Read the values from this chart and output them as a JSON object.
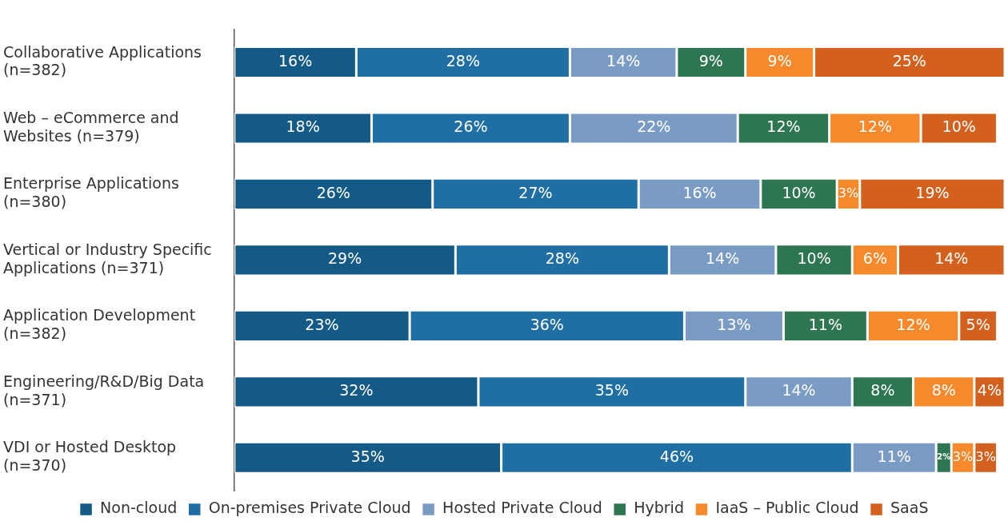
{
  "chart_data": {
    "type": "bar",
    "orientation": "horizontal",
    "stacked": true,
    "grid": false,
    "legend": "bottom",
    "tick_labels": "y",
    "categories": [
      "Collaborative Applications\n(n=382)",
      "Web – eCommerce and\nWebsites (n=379)",
      "Enterprise Applications\n(n=380)",
      "Vertical or Industry Specific\nApplications (n=371)",
      "Application Development\n(n=382)",
      "Engineering/R&D/Big Data\n(n=371)",
      "VDI or Hosted Desktop\n(n=370)"
    ],
    "series": [
      {
        "name": "Non-cloud",
        "color": "#135a87",
        "values": [
          16,
          18,
          26,
          29,
          23,
          32,
          35
        ],
        "value_labels": [
          "16%",
          "18%",
          "26%",
          "29%",
          "23%",
          "32%",
          "35%"
        ]
      },
      {
        "name": "On-premises Private Cloud",
        "color": "#1f6fa5",
        "values": [
          28,
          26,
          27,
          28,
          36,
          35,
          46
        ],
        "value_labels": [
          "28%",
          "26%",
          "27%",
          "28%",
          "36%",
          "35%",
          "46%"
        ]
      },
      {
        "name": "Hosted Private Cloud",
        "color": "#7a9cc4",
        "values": [
          14,
          22,
          16,
          14,
          13,
          14,
          11
        ],
        "value_labels": [
          "14%",
          "22%",
          "16%",
          "14%",
          "13%",
          "14%",
          "11%"
        ]
      },
      {
        "name": "Hybrid",
        "color": "#2e7652",
        "values": [
          9,
          12,
          10,
          10,
          11,
          8,
          2
        ],
        "value_labels": [
          "9%",
          "12%",
          "10%",
          "10%",
          "11%",
          "8%",
          "2%"
        ]
      },
      {
        "name": "IaaS – Public Cloud",
        "color": "#f6892b",
        "values": [
          9,
          12,
          3,
          6,
          12,
          8,
          3
        ],
        "value_labels": [
          "9%",
          "12%",
          "3%",
          "6%",
          "12%",
          "8%",
          "3%"
        ]
      },
      {
        "name": "SaaS",
        "color": "#d4601d",
        "values": [
          25,
          10,
          19,
          14,
          5,
          4,
          3
        ],
        "value_labels": [
          "25%",
          "10%",
          "19%",
          "14%",
          "5%",
          "4%",
          "3%"
        ]
      }
    ]
  }
}
